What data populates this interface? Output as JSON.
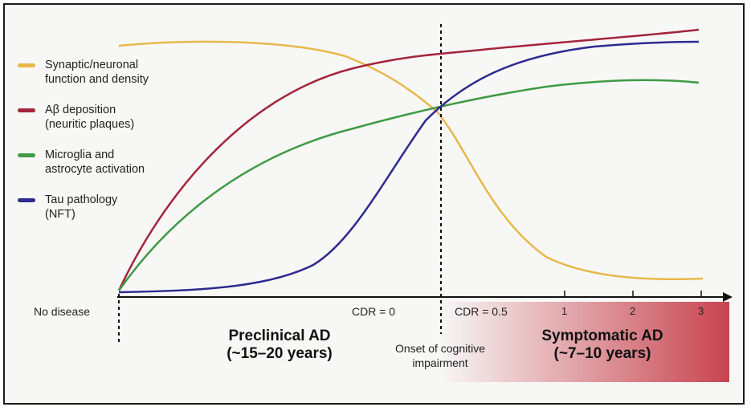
{
  "legend": [
    {
      "line1": "Synaptic/neuronal",
      "line2": "function and density",
      "color": "#e8b84a",
      "icon": "orange-line-swatch"
    },
    {
      "line1": "Aβ deposition",
      "line2": "(neuritic plaques)",
      "color": "#a3253a",
      "icon": "red-line-swatch"
    },
    {
      "line1": "Microglia and",
      "line2": "astrocyte activation",
      "color": "#3f9a45",
      "icon": "green-line-swatch"
    },
    {
      "line1": "Tau pathology",
      "line2": "(NFT)",
      "color": "#2e2a8f",
      "icon": "blue-line-swatch"
    }
  ],
  "axis": {
    "no_disease": "No disease",
    "cdr0": "CDR = 0",
    "cdr05": "CDR = 0.5",
    "ticks": [
      "1",
      "2",
      "3"
    ]
  },
  "phases": {
    "preclinical": {
      "title": "Preclinical AD",
      "duration": "(~15–20 years)"
    },
    "symptomatic": {
      "title": "Symptomatic AD",
      "duration": "(~7–10 years)"
    }
  },
  "onset": {
    "line1": "Onset of cognitive",
    "line2": "impairment"
  },
  "colors": {
    "synaptic": "#e8b84a",
    "amyloid": "#a3253a",
    "microglia": "#3f9a45",
    "tau": "#2e2a8f",
    "symptomatic_gradient": "#c8444f"
  }
}
